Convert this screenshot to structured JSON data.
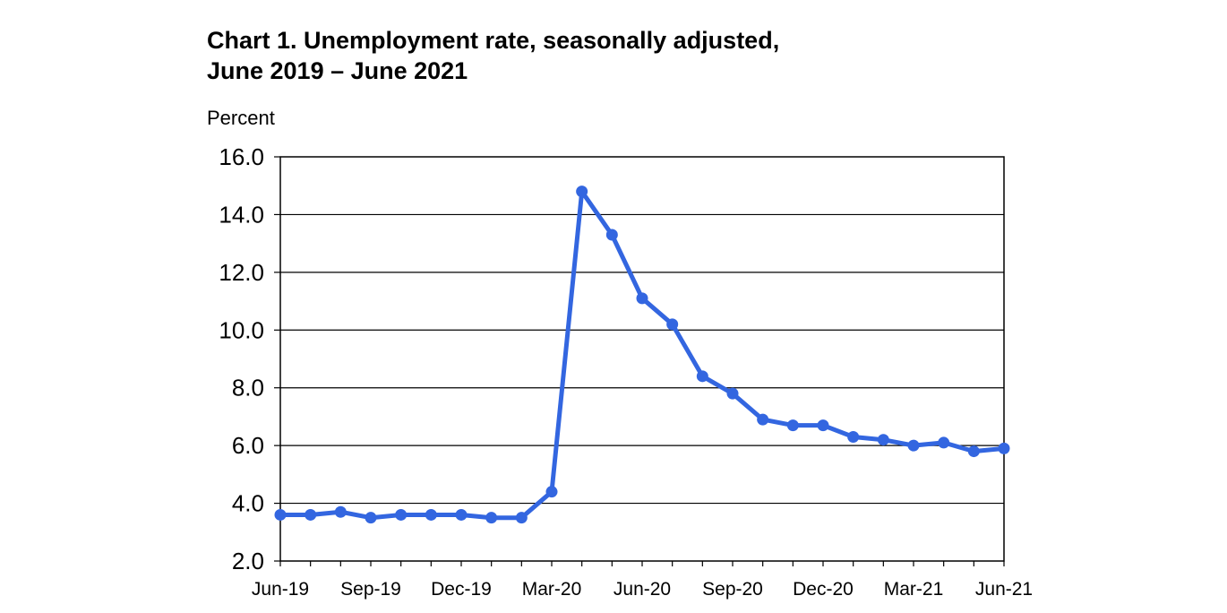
{
  "chart_data": {
    "type": "line",
    "title_lines": [
      "Chart 1. Unemployment rate, seasonally adjusted,",
      "June 2019 – June 2021"
    ],
    "ylabel": "Percent",
    "xlabel": "",
    "ylim": [
      2.0,
      16.0
    ],
    "y_ticks": [
      "2.0",
      "4.0",
      "6.0",
      "8.0",
      "10.0",
      "12.0",
      "14.0",
      "16.0"
    ],
    "x": [
      "Jun-19",
      "Jul-19",
      "Aug-19",
      "Sep-19",
      "Oct-19",
      "Nov-19",
      "Dec-19",
      "Jan-20",
      "Feb-20",
      "Mar-20",
      "Apr-20",
      "May-20",
      "Jun-20",
      "Jul-20",
      "Aug-20",
      "Sep-20",
      "Oct-20",
      "Nov-20",
      "Dec-20",
      "Jan-21",
      "Feb-21",
      "Mar-21",
      "Apr-21",
      "May-21",
      "Jun-21"
    ],
    "x_tick_labels": [
      "Jun-19",
      "Sep-19",
      "Dec-19",
      "Mar-20",
      "Jun-20",
      "Sep-20",
      "Dec-20",
      "Mar-21",
      "Jun-21"
    ],
    "series": [
      {
        "values": [
          3.6,
          3.6,
          3.7,
          3.5,
          3.6,
          3.6,
          3.6,
          3.5,
          3.5,
          4.4,
          14.8,
          13.3,
          11.1,
          10.2,
          8.4,
          7.8,
          6.9,
          6.7,
          6.7,
          6.3,
          6.2,
          6.0,
          6.1,
          5.8,
          5.9
        ],
        "color": "#3366e0"
      }
    ],
    "grid": true,
    "legend": "none"
  }
}
